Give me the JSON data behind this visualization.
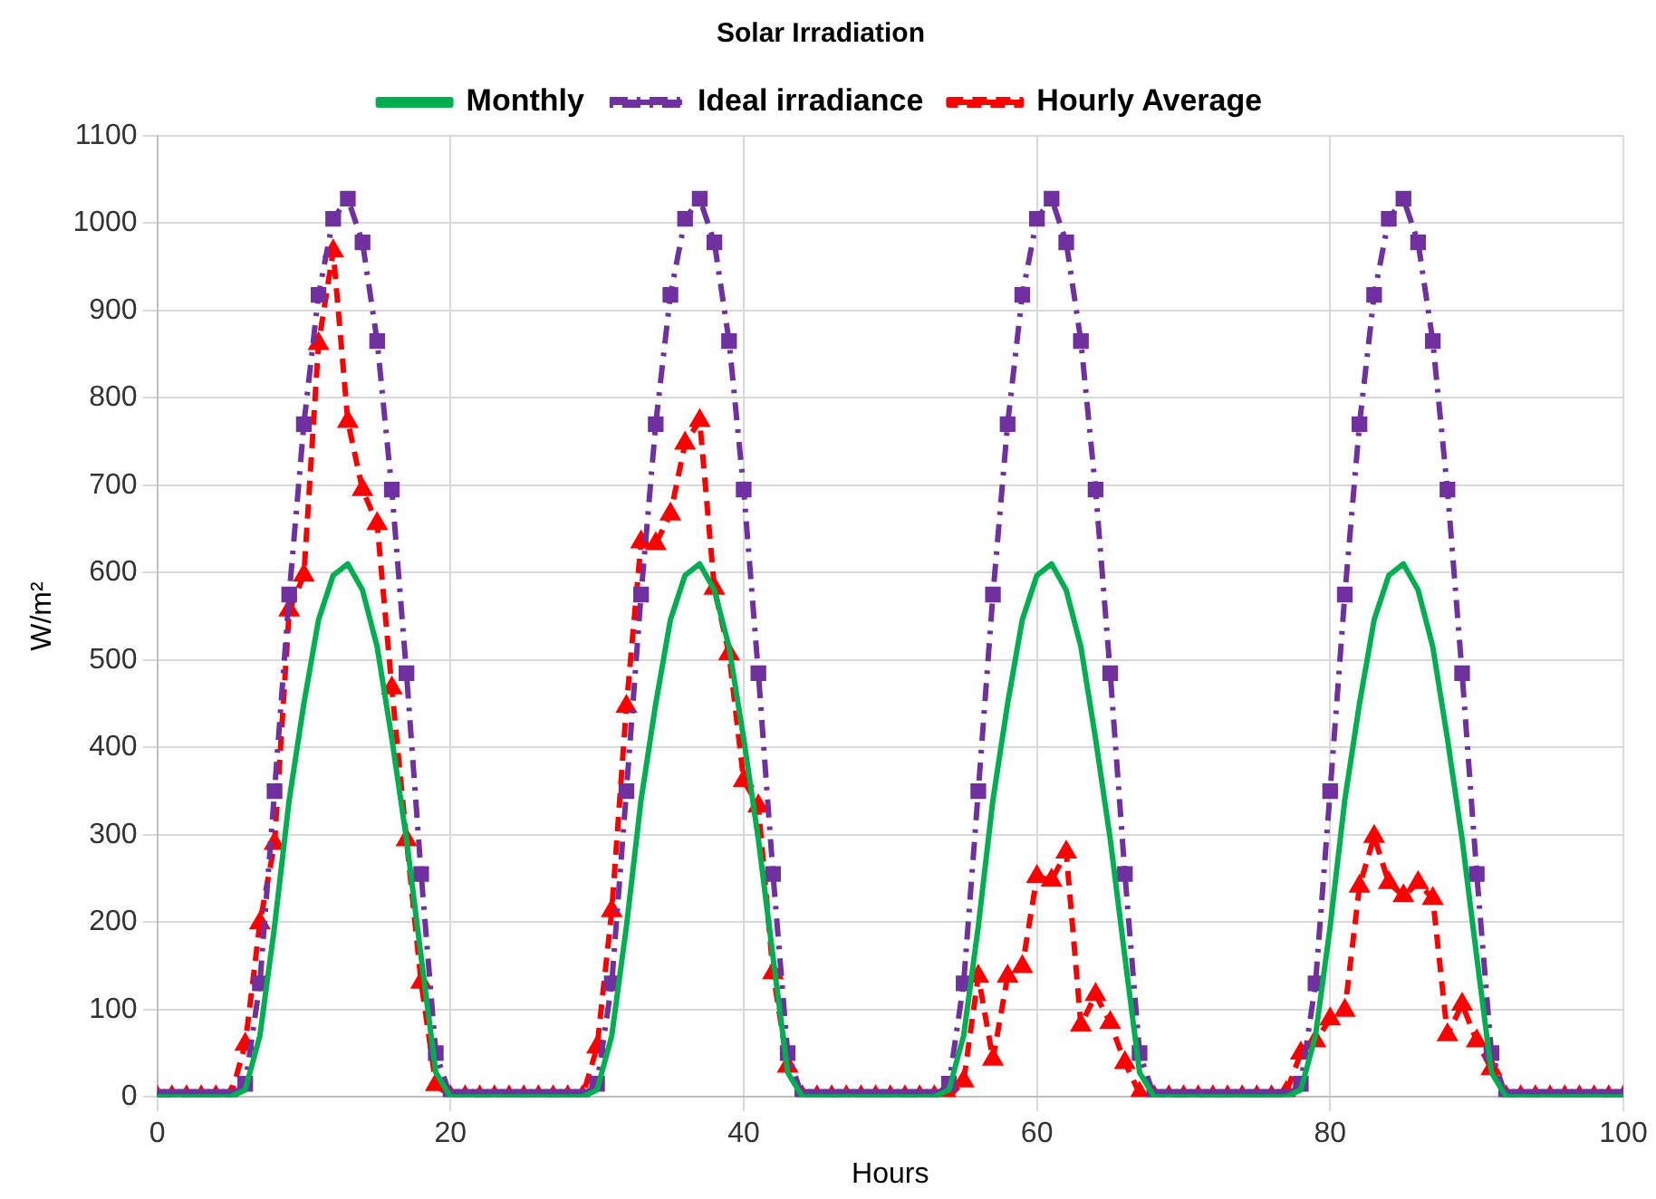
{
  "chart_data": {
    "type": "line",
    "title": "Solar Irradiation",
    "xlabel": "Hours",
    "ylabel": "W/m²",
    "x": [
      0,
      1,
      2,
      3,
      4,
      5,
      6,
      7,
      8,
      9,
      10,
      11,
      12,
      13,
      14,
      15,
      16,
      17,
      18,
      19,
      20,
      21,
      22,
      23,
      24,
      25,
      26,
      27,
      28,
      29,
      30,
      31,
      32,
      33,
      34,
      35,
      36,
      37,
      38,
      39,
      40,
      41,
      42,
      43,
      44,
      45,
      46,
      47,
      48,
      49,
      50,
      51,
      52,
      53,
      54,
      55,
      56,
      57,
      58,
      59,
      60,
      61,
      62,
      63,
      64,
      65,
      66,
      67,
      68,
      69,
      70,
      71,
      72,
      73,
      74,
      75,
      76,
      77,
      78,
      79,
      80,
      81,
      82,
      83,
      84,
      85,
      86,
      87,
      88,
      89,
      90,
      91,
      92,
      93,
      94,
      95,
      96,
      97,
      98,
      99,
      100
    ],
    "series": [
      {
        "name": "Ideal irradiance",
        "color": "#7030a0",
        "marker": "square",
        "line_style": "dashdot",
        "values": [
          0,
          0,
          0,
          0,
          0,
          0,
          15,
          130,
          350,
          575,
          770,
          918,
          1005,
          1028,
          978,
          865,
          695,
          485,
          255,
          50,
          0,
          0,
          0,
          0,
          0,
          0,
          0,
          0,
          0,
          0,
          15,
          130,
          350,
          575,
          770,
          918,
          1005,
          1028,
          978,
          865,
          695,
          485,
          255,
          50,
          0,
          0,
          0,
          0,
          0,
          0,
          0,
          0,
          0,
          0,
          15,
          130,
          350,
          575,
          770,
          918,
          1005,
          1028,
          978,
          865,
          695,
          485,
          255,
          50,
          0,
          0,
          0,
          0,
          0,
          0,
          0,
          0,
          0,
          0,
          15,
          130,
          350,
          575,
          770,
          918,
          1005,
          1028,
          978,
          865,
          695,
          485,
          255,
          50,
          0,
          0,
          0,
          0,
          0,
          0,
          0,
          0,
          0
        ]
      },
      {
        "name": "Hourly Average",
        "color": "#ff0000",
        "marker": "triangle",
        "line_style": "dashed",
        "values": [
          0,
          0,
          0,
          0,
          0,
          0,
          60,
          199,
          290,
          557,
          597,
          862,
          968,
          773,
          695,
          656,
          468,
          294,
          131,
          14,
          0,
          0,
          0,
          0,
          0,
          0,
          0,
          0,
          0,
          0,
          57,
          213,
          447,
          635,
          633,
          667,
          748,
          774,
          582,
          507,
          362,
          333,
          142,
          35,
          0,
          0,
          0,
          0,
          0,
          0,
          0,
          0,
          0,
          0,
          0,
          18,
          138,
          43,
          138,
          149,
          252,
          248,
          280,
          82,
          117,
          85,
          39,
          4,
          0,
          0,
          0,
          0,
          0,
          0,
          0,
          0,
          0,
          5,
          50,
          64,
          89,
          99,
          241,
          298,
          245,
          230,
          245,
          227,
          71,
          106,
          64,
          32,
          0,
          0,
          0,
          0,
          0,
          0,
          0,
          0,
          0
        ]
      },
      {
        "name": "Monthly",
        "color": "#00b050",
        "marker": "none",
        "line_style": "solid",
        "values": [
          0,
          0,
          0,
          0,
          0,
          0,
          8,
          70,
          195,
          340,
          450,
          546,
          597,
          610,
          580,
          515,
          410,
          295,
          160,
          28,
          0,
          0,
          0,
          0,
          0,
          0,
          0,
          0,
          0,
          0,
          8,
          70,
          195,
          340,
          450,
          546,
          597,
          610,
          580,
          515,
          410,
          295,
          160,
          28,
          0,
          0,
          0,
          0,
          0,
          0,
          0,
          0,
          0,
          0,
          8,
          70,
          195,
          340,
          450,
          546,
          597,
          610,
          580,
          515,
          410,
          295,
          160,
          28,
          0,
          0,
          0,
          0,
          0,
          0,
          0,
          0,
          0,
          0,
          8,
          70,
          195,
          340,
          450,
          546,
          597,
          610,
          580,
          515,
          410,
          295,
          160,
          28,
          0,
          0,
          0,
          0,
          0,
          0,
          0,
          0,
          0
        ]
      }
    ],
    "xlim": [
      0,
      100
    ],
    "xticks": [
      0,
      20,
      40,
      60,
      80,
      100
    ],
    "ylim": [
      0,
      1100
    ],
    "yticks": [
      0,
      100,
      200,
      300,
      400,
      500,
      600,
      700,
      800,
      900,
      1000,
      1100
    ],
    "grid": true,
    "legend": "top"
  }
}
